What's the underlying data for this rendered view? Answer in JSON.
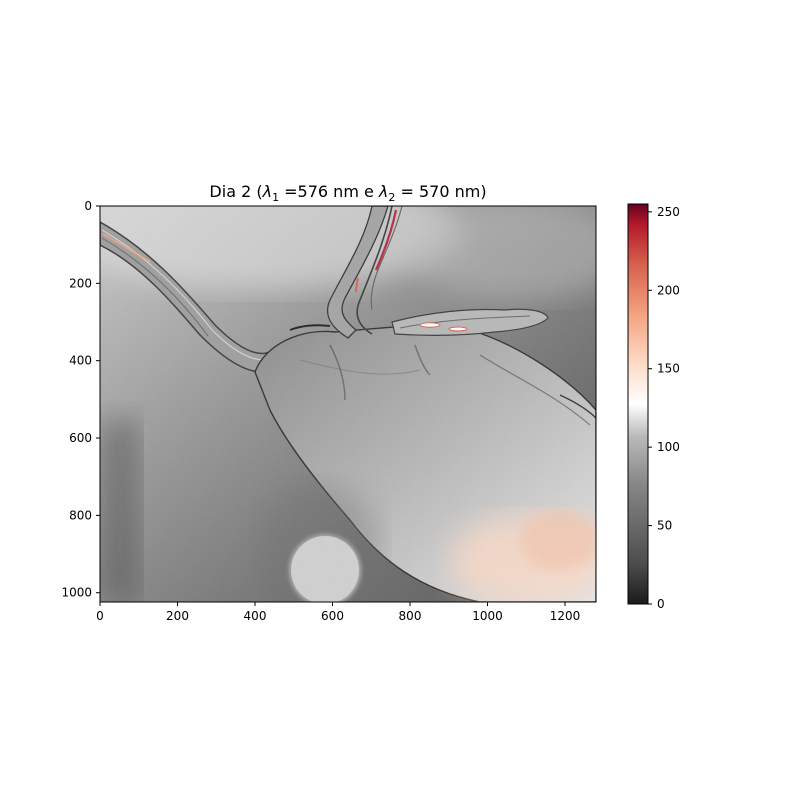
{
  "chart_data": {
    "type": "heatmap",
    "title": "Dia 2 (λ₁ =576 nm e λ₂ = 570 nm)",
    "title_parts": {
      "prefix": "Dia 2 (",
      "lambda": "λ",
      "sub1": "1",
      "mid": " =576 nm e ",
      "sub2": "2",
      "suffix": " = 570 nm)"
    },
    "xlabel": "",
    "ylabel": "",
    "xlim": [
      0,
      1280
    ],
    "ylim": [
      1024,
      0
    ],
    "x_ticks": [
      0,
      200,
      400,
      600,
      800,
      1000,
      1200
    ],
    "y_ticks": [
      0,
      200,
      400,
      600,
      800,
      1000
    ],
    "colorbar": {
      "colormap": "RdGy_r",
      "range": [
        0,
        255
      ],
      "ticks": [
        0,
        50,
        100,
        150,
        200,
        250
      ]
    },
    "grid": false
  }
}
